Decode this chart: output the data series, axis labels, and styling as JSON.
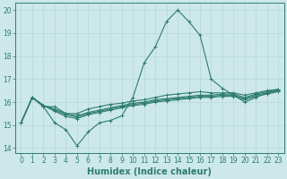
{
  "xlabel": "Humidex (Indice chaleur)",
  "bg_color": "#cce8e8",
  "line_color": "#2e7d6e",
  "grid_color": "#b8d8d8",
  "xlim": [
    -0.5,
    23.5
  ],
  "ylim": [
    13.8,
    20.3
  ],
  "yticks": [
    14,
    15,
    16,
    17,
    18,
    19,
    20
  ],
  "xticks": [
    0,
    1,
    2,
    3,
    4,
    5,
    6,
    7,
    8,
    9,
    10,
    11,
    12,
    13,
    14,
    15,
    16,
    17,
    18,
    19,
    20,
    21,
    22,
    23
  ],
  "lines": [
    [
      15.1,
      16.2,
      15.8,
      15.1,
      14.8,
      14.1,
      14.7,
      15.1,
      15.2,
      15.4,
      16.2,
      17.7,
      18.4,
      19.5,
      20.0,
      19.5,
      18.9,
      17.0,
      16.6,
      16.3,
      16.0,
      16.2,
      16.4,
      16.5
    ],
    [
      15.1,
      16.2,
      15.8,
      15.8,
      15.5,
      15.5,
      15.7,
      15.8,
      15.9,
      15.95,
      16.05,
      16.1,
      16.2,
      16.3,
      16.35,
      16.4,
      16.45,
      16.4,
      16.4,
      16.4,
      16.3,
      16.4,
      16.5,
      16.55
    ],
    [
      15.1,
      16.2,
      15.85,
      15.7,
      15.5,
      15.4,
      15.55,
      15.65,
      15.75,
      15.85,
      15.95,
      16.0,
      16.1,
      16.15,
      16.2,
      16.25,
      16.3,
      16.3,
      16.35,
      16.35,
      16.2,
      16.35,
      16.45,
      16.55
    ],
    [
      15.1,
      16.2,
      15.85,
      15.65,
      15.45,
      15.35,
      15.5,
      15.6,
      15.7,
      15.8,
      15.9,
      15.95,
      16.05,
      16.1,
      16.15,
      16.2,
      16.25,
      16.25,
      16.3,
      16.3,
      16.15,
      16.3,
      16.4,
      16.5
    ],
    [
      15.1,
      16.2,
      15.85,
      15.6,
      15.38,
      15.28,
      15.45,
      15.55,
      15.65,
      15.75,
      15.85,
      15.9,
      16.0,
      16.05,
      16.1,
      16.15,
      16.2,
      16.2,
      16.25,
      16.25,
      16.1,
      16.25,
      16.35,
      16.45
    ]
  ],
  "marker": "+",
  "markersize": 3,
  "linewidth": 0.8,
  "xlabel_fontsize": 7,
  "tick_fontsize": 5.5,
  "dpi": 100,
  "figsize": [
    3.2,
    2.0
  ]
}
